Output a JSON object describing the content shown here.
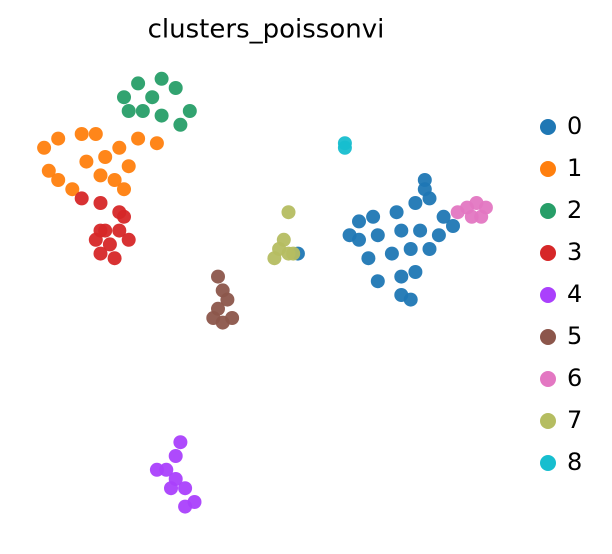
{
  "chart_data": {
    "type": "scatter",
    "title": "clusters_poissonvi",
    "xlim": [
      0,
      100
    ],
    "ylim": [
      0,
      100
    ],
    "series": [
      {
        "name": "0",
        "color": "#1f77b4",
        "x": [
          70,
          73,
          78,
          82,
          84,
          85,
          88,
          90,
          70,
          74,
          79,
          83,
          87,
          72,
          77,
          81,
          85,
          74,
          79,
          82,
          79,
          81,
          84,
          68,
          57
        ],
        "values": [
          66,
          67,
          68,
          70,
          75,
          71,
          67,
          65,
          62,
          63,
          64,
          64,
          63,
          58,
          59,
          60,
          60,
          53,
          54,
          55,
          50,
          49,
          73,
          63,
          59
        ]
      },
      {
        "name": "1",
        "color": "#ff7f0e",
        "x": [
          3,
          6,
          11,
          14,
          4,
          6,
          16,
          19,
          23,
          27,
          21,
          18,
          15,
          20,
          12,
          9
        ],
        "values": [
          82,
          84,
          85,
          85,
          77,
          75,
          80,
          82,
          84,
          83,
          78,
          75,
          76,
          73,
          79,
          73
        ]
      },
      {
        "name": "2",
        "color": "#279e68",
        "x": [
          20,
          23,
          28,
          31,
          34,
          32,
          28,
          24,
          21,
          26
        ],
        "values": [
          93,
          96,
          97,
          95,
          90,
          87,
          89,
          90,
          90,
          93
        ]
      },
      {
        "name": "3",
        "color": "#d62728",
        "x": [
          11,
          15,
          19,
          20,
          15,
          19,
          14,
          17,
          21,
          15,
          18,
          16
        ],
        "values": [
          71,
          70,
          68,
          67,
          64,
          64,
          62,
          61,
          62,
          59,
          58,
          64
        ]
      },
      {
        "name": "4",
        "color": "#aa40fc",
        "x": [
          32,
          31,
          29,
          27,
          31,
          33,
          35,
          33,
          30
        ],
        "values": [
          18,
          15,
          12,
          12,
          10,
          8,
          5,
          4,
          8
        ]
      },
      {
        "name": "5",
        "color": "#8c564b",
        "x": [
          40,
          41,
          42,
          40,
          39,
          41,
          43
        ],
        "values": [
          54,
          51,
          49,
          47,
          45,
          44,
          45
        ]
      },
      {
        "name": "6",
        "color": "#e377c2",
        "x": [
          91,
          93,
          95,
          97,
          94,
          96
        ],
        "values": [
          68,
          69,
          70,
          69,
          67,
          67
        ]
      },
      {
        "name": "7",
        "color": "#b5bd61",
        "x": [
          55,
          54,
          53,
          52,
          55,
          56
        ],
        "values": [
          68,
          62,
          60,
          58,
          59,
          59
        ]
      },
      {
        "name": "8",
        "color": "#17becf",
        "x": [
          67,
          67
        ],
        "values": [
          83,
          82
        ]
      }
    ]
  }
}
